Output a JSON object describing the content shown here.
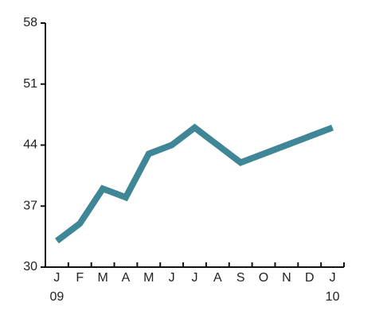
{
  "chart_data": {
    "type": "line",
    "categories": [
      "J",
      "F",
      "M",
      "A",
      "M",
      "J",
      "J",
      "A",
      "S",
      "O",
      "N",
      "D",
      "J"
    ],
    "year_labels": [
      "09",
      null,
      null,
      null,
      null,
      null,
      null,
      null,
      null,
      null,
      null,
      null,
      "10"
    ],
    "series": [
      {
        "color": "#3f8696",
        "values": [
          33,
          35,
          39,
          38,
          43,
          44,
          46,
          44,
          42,
          43,
          44,
          45,
          46
        ]
      }
    ],
    "ylim": [
      30,
      58
    ],
    "yticks": [
      30,
      37,
      44,
      51,
      58
    ]
  }
}
